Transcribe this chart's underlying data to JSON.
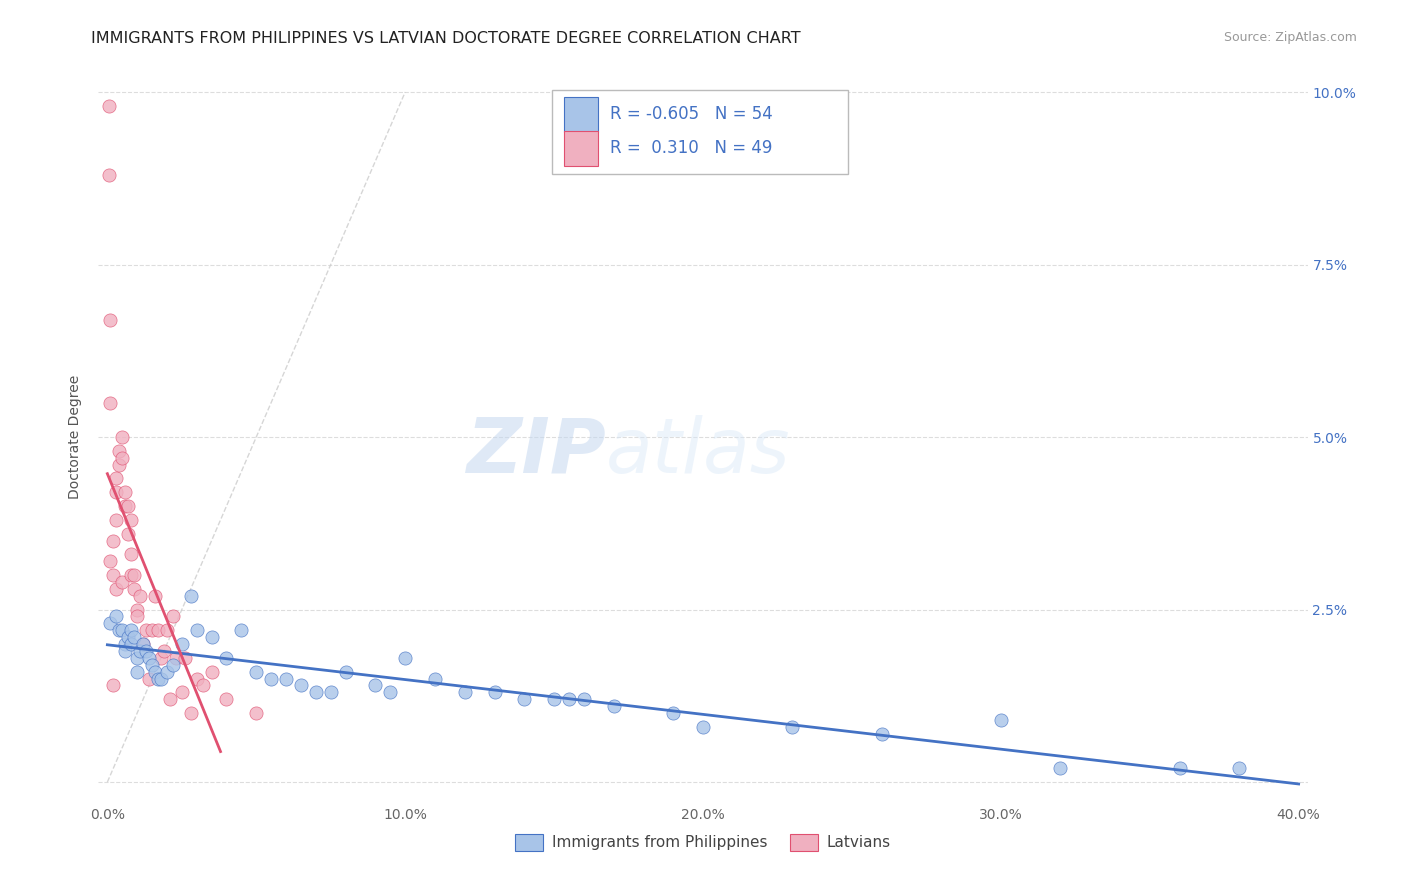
{
  "title": "IMMIGRANTS FROM PHILIPPINES VS LATVIAN DOCTORATE DEGREE CORRELATION CHART",
  "source": "Source: ZipAtlas.com",
  "ylabel": "Doctorate Degree",
  "x_tick_labels": [
    "0.0%",
    "10.0%",
    "20.0%",
    "30.0%",
    "40.0%"
  ],
  "x_tick_positions": [
    0.0,
    0.1,
    0.2,
    0.3,
    0.4
  ],
  "y_tick_labels": [
    "",
    "2.5%",
    "5.0%",
    "7.5%",
    "10.0%"
  ],
  "y_tick_positions": [
    0.0,
    0.025,
    0.05,
    0.075,
    0.1
  ],
  "xlim": [
    -0.003,
    0.403
  ],
  "ylim": [
    -0.003,
    0.103
  ],
  "legend_entries": [
    "Immigrants from Philippines",
    "Latvians"
  ],
  "r_blue": -0.605,
  "n_blue": 54,
  "r_pink": 0.31,
  "n_pink": 49,
  "color_blue": "#a8c4e8",
  "color_pink": "#f0b0c0",
  "color_blue_line": "#4472c4",
  "color_pink_line": "#e05070",
  "color_diag": "#cccccc",
  "watermark_zip": "ZIP",
  "watermark_atlas": "atlas",
  "blue_scatter_x": [
    0.001,
    0.003,
    0.004,
    0.005,
    0.006,
    0.006,
    0.007,
    0.008,
    0.008,
    0.009,
    0.01,
    0.01,
    0.011,
    0.012,
    0.013,
    0.014,
    0.015,
    0.016,
    0.017,
    0.018,
    0.02,
    0.022,
    0.025,
    0.028,
    0.03,
    0.035,
    0.04,
    0.045,
    0.05,
    0.055,
    0.06,
    0.065,
    0.07,
    0.075,
    0.08,
    0.09,
    0.095,
    0.1,
    0.11,
    0.12,
    0.13,
    0.14,
    0.15,
    0.155,
    0.16,
    0.17,
    0.19,
    0.2,
    0.23,
    0.26,
    0.3,
    0.32,
    0.36,
    0.38
  ],
  "blue_scatter_y": [
    0.023,
    0.024,
    0.022,
    0.022,
    0.02,
    0.019,
    0.021,
    0.022,
    0.02,
    0.021,
    0.016,
    0.018,
    0.019,
    0.02,
    0.019,
    0.018,
    0.017,
    0.016,
    0.015,
    0.015,
    0.016,
    0.017,
    0.02,
    0.027,
    0.022,
    0.021,
    0.018,
    0.022,
    0.016,
    0.015,
    0.015,
    0.014,
    0.013,
    0.013,
    0.016,
    0.014,
    0.013,
    0.018,
    0.015,
    0.013,
    0.013,
    0.012,
    0.012,
    0.012,
    0.012,
    0.011,
    0.01,
    0.008,
    0.008,
    0.007,
    0.009,
    0.002,
    0.002,
    0.002
  ],
  "pink_scatter_x": [
    0.0005,
    0.0005,
    0.001,
    0.001,
    0.001,
    0.002,
    0.002,
    0.002,
    0.003,
    0.003,
    0.003,
    0.003,
    0.004,
    0.004,
    0.005,
    0.005,
    0.005,
    0.006,
    0.006,
    0.007,
    0.007,
    0.008,
    0.008,
    0.008,
    0.009,
    0.009,
    0.01,
    0.01,
    0.011,
    0.012,
    0.013,
    0.014,
    0.015,
    0.016,
    0.017,
    0.018,
    0.019,
    0.02,
    0.021,
    0.022,
    0.023,
    0.025,
    0.026,
    0.028,
    0.03,
    0.032,
    0.035,
    0.04,
    0.05
  ],
  "pink_scatter_y": [
    0.098,
    0.088,
    0.067,
    0.055,
    0.032,
    0.035,
    0.03,
    0.014,
    0.044,
    0.042,
    0.038,
    0.028,
    0.048,
    0.046,
    0.05,
    0.047,
    0.029,
    0.042,
    0.04,
    0.04,
    0.036,
    0.038,
    0.033,
    0.03,
    0.03,
    0.028,
    0.025,
    0.024,
    0.027,
    0.02,
    0.022,
    0.015,
    0.022,
    0.027,
    0.022,
    0.018,
    0.019,
    0.022,
    0.012,
    0.024,
    0.018,
    0.013,
    0.018,
    0.01,
    0.015,
    0.014,
    0.016,
    0.012,
    0.01
  ],
  "title_fontsize": 11.5,
  "source_fontsize": 9,
  "axis_label_fontsize": 10,
  "tick_fontsize": 10,
  "legend_fontsize": 11
}
